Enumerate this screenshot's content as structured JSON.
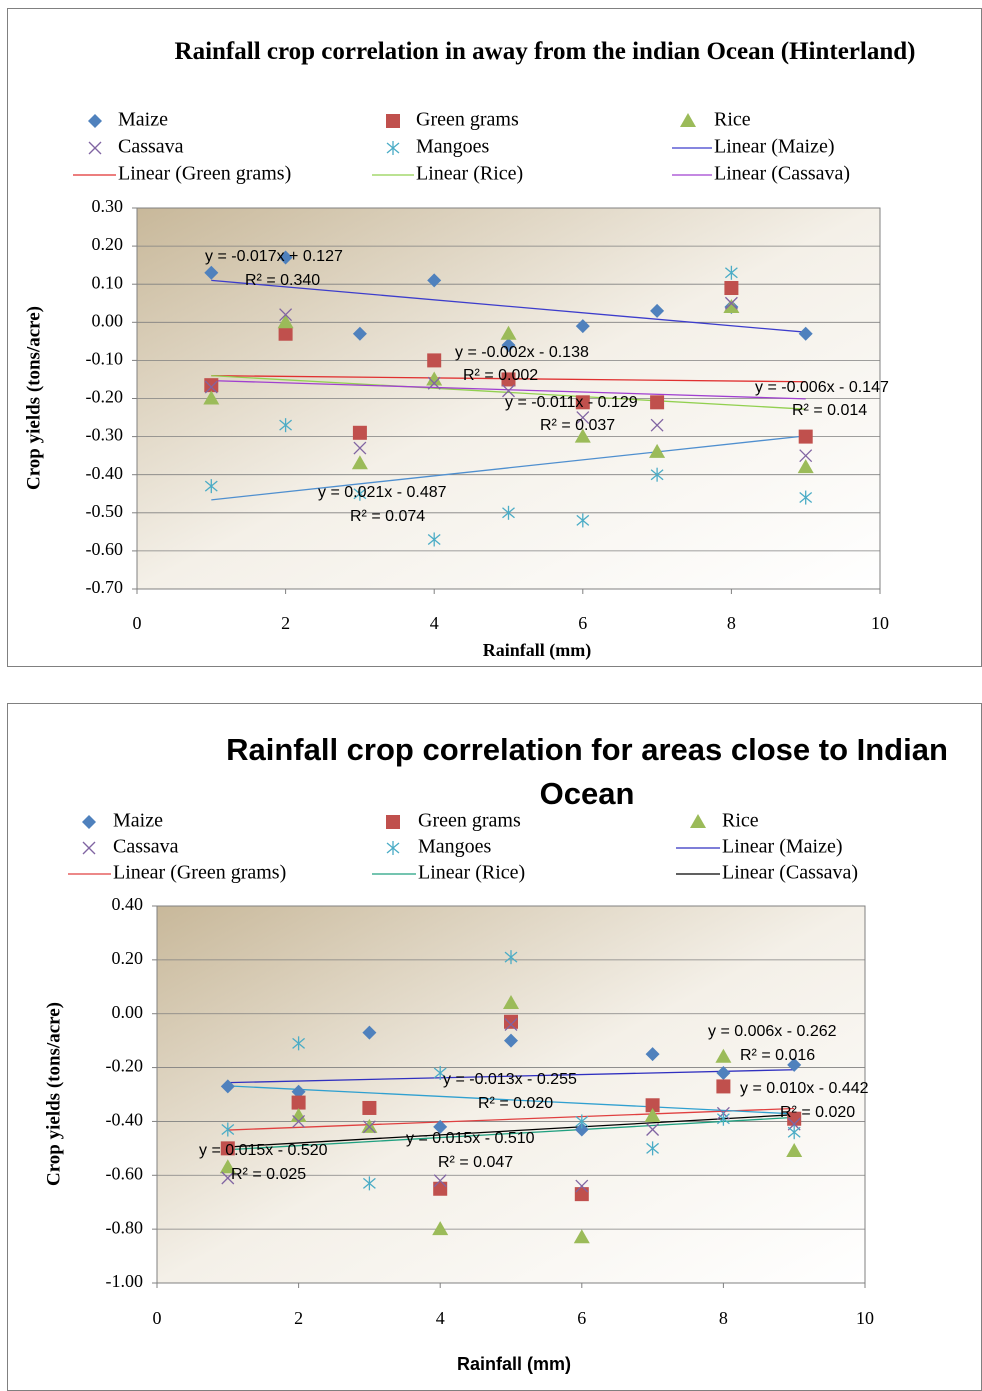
{
  "chart_data": [
    {
      "type": "scatter",
      "title": "Rainfall crop correlation in away from the indian Ocean (Hinterland)",
      "x_label": "Rainfall (mm)",
      "y_label": "Crop yields (tons/acre)",
      "x": [
        1,
        2,
        3,
        4,
        5,
        6,
        7,
        8,
        9
      ],
      "xlim": [
        0,
        10
      ],
      "xticks": [
        0,
        2,
        4,
        6,
        8,
        10
      ],
      "ylim": [
        -0.7,
        0.3
      ],
      "yticks": [
        {
          "value": 0.3,
          "label": "0.30"
        },
        {
          "value": 0.2,
          "label": "0.20"
        },
        {
          "value": 0.1,
          "label": "0.10"
        },
        {
          "value": 0,
          "label": "0.00"
        },
        {
          "value": -0.1,
          "label": "-0.10"
        },
        {
          "value": -0.2,
          "label": "-0.20"
        },
        {
          "value": -0.3,
          "label": "-0.30"
        },
        {
          "value": -0.4,
          "label": "-0.40"
        },
        {
          "value": -0.5,
          "label": "-0.50"
        },
        {
          "value": -0.6,
          "label": "-0.60"
        },
        {
          "value": -0.7,
          "label": "-0.70"
        }
      ],
      "grid": true,
      "series": [
        {
          "name": "Maize",
          "color": "#4f81bd",
          "marker": "diamond",
          "values": [
            0.13,
            0.17,
            -0.03,
            0.11,
            -0.06,
            -0.01,
            0.03,
            0.04,
            -0.03
          ]
        },
        {
          "name": "Green grams",
          "color": "#c0504d",
          "marker": "square",
          "values": [
            -0.165,
            -0.03,
            -0.29,
            -0.1,
            -0.15,
            -0.21,
            -0.21,
            0.09,
            -0.3
          ]
        },
        {
          "name": "Rice",
          "color": "#9bbb59",
          "marker": "triangle",
          "values": [
            -0.2,
            0,
            -0.37,
            -0.15,
            -0.03,
            -0.3,
            -0.34,
            0.04,
            -0.38
          ]
        },
        {
          "name": "Cassava",
          "color": "#8064a2",
          "marker": "x",
          "values": [
            -0.17,
            0.02,
            -0.33,
            -0.16,
            -0.18,
            -0.25,
            -0.27,
            0.05,
            -0.35
          ]
        },
        {
          "name": "Mangoes",
          "color": "#4bacc6",
          "marker": "asterisk",
          "values": [
            -0.43,
            -0.27,
            -0.45,
            -0.57,
            -0.5,
            -0.52,
            -0.4,
            0.13,
            -0.46
          ]
        }
      ],
      "trendlines": [
        {
          "name": "Linear (Maize)",
          "color": "#3d3dcc",
          "slope": -0.017,
          "intercept": 0.127,
          "equation": "y = -0.017x + 0.127",
          "r2": "R² = 0.340"
        },
        {
          "name": "Linear (Green grams)",
          "color": "#e03030",
          "slope": -0.002,
          "intercept": -0.138,
          "equation": "y = -0.002x - 0.138",
          "r2": "R² = 0.002"
        },
        {
          "name": "Linear (Rice)",
          "color": "#92d050",
          "slope": -0.011,
          "intercept": -0.129,
          "equation": "y = -0.011x - 0.129",
          "r2": "R² = 0.037"
        },
        {
          "name": "Linear (Cassava)",
          "color": "#a040d0",
          "slope": -0.006,
          "intercept": -0.147,
          "equation": "y = -0.006x - 0.147",
          "r2": "R² = 0.014"
        },
        {
          "color": "#4f8fcf",
          "slope": 0.021,
          "intercept": -0.487,
          "equation": "y = 0.021x - 0.487",
          "r2": "R² = 0.074"
        }
      ]
    },
    {
      "type": "scatter",
      "title": "Rainfall crop correlation for areas close to Indian Ocean",
      "x_label": "Rainfall (mm)",
      "y_label": "Crop yields (tons/acre)",
      "x": [
        1,
        2,
        3,
        4,
        5,
        6,
        7,
        8,
        9
      ],
      "xlim": [
        0,
        10
      ],
      "xticks": [
        0,
        2,
        4,
        6,
        8,
        10
      ],
      "ylim": [
        -1,
        0.4
      ],
      "yticks": [
        {
          "value": 0.4,
          "label": "0.40"
        },
        {
          "value": 0.2,
          "label": "0.20"
        },
        {
          "value": 0,
          "label": "0.00"
        },
        {
          "value": -0.2,
          "label": "-0.20"
        },
        {
          "value": -0.4,
          "label": "-0.40"
        },
        {
          "value": -0.6,
          "label": "-0.60"
        },
        {
          "value": -0.8,
          "label": "-0.80"
        },
        {
          "value": -1,
          "label": "-1.00"
        }
      ],
      "grid": true,
      "series": [
        {
          "name": "Maize",
          "color": "#4f81bd",
          "marker": "diamond",
          "values": [
            -0.27,
            -0.29,
            -0.07,
            -0.42,
            -0.1,
            -0.43,
            -0.15,
            -0.22,
            -0.19
          ]
        },
        {
          "name": "Green grams",
          "color": "#c0504d",
          "marker": "square",
          "values": [
            -0.5,
            -0.33,
            -0.35,
            -0.65,
            -0.03,
            -0.67,
            -0.34,
            -0.27,
            -0.39
          ]
        },
        {
          "name": "Rice",
          "color": "#9bbb59",
          "marker": "triangle",
          "values": [
            -0.57,
            -0.38,
            -0.42,
            -0.8,
            0.04,
            -0.83,
            -0.38,
            -0.16,
            -0.51
          ]
        },
        {
          "name": "Cassava",
          "color": "#8064a2",
          "marker": "x",
          "values": [
            -0.61,
            -0.4,
            -0.42,
            -0.62,
            -0.04,
            -0.64,
            -0.43,
            -0.37,
            -0.41
          ]
        },
        {
          "name": "Mangoes",
          "color": "#4bacc6",
          "marker": "asterisk",
          "values": [
            -0.43,
            -0.11,
            -0.63,
            -0.22,
            0.21,
            -0.4,
            -0.5,
            -0.39,
            -0.44
          ]
        }
      ],
      "trendlines": [
        {
          "name": "Linear (Maize)",
          "color": "#3030c0",
          "slope": 0.006,
          "intercept": -0.262,
          "equation": "y = 0.006x - 0.262",
          "r2": "R² = 0.016"
        },
        {
          "name": "Linear (Green grams)",
          "color": "#e04040",
          "slope": 0.01,
          "intercept": -0.442,
          "equation": "y = 0.010x - 0.442",
          "r2": "R² = 0.020"
        },
        {
          "name": "Linear (Rice)",
          "color": "#20a080",
          "slope": 0.015,
          "intercept": -0.52,
          "equation": "y = 0.015x - 0.520",
          "r2": "R² = 0.025"
        },
        {
          "name": "Linear (Cassava)",
          "color": "#000000",
          "slope": 0.015,
          "intercept": -0.51,
          "equation": "y = 0.015x - 0.510",
          "r2": "R² = 0.047"
        },
        {
          "color": "#30a0d0",
          "slope": -0.013,
          "intercept": -0.255,
          "equation": "y = -0.013x - 0.255",
          "r2": "R² = 0.020"
        }
      ]
    }
  ]
}
